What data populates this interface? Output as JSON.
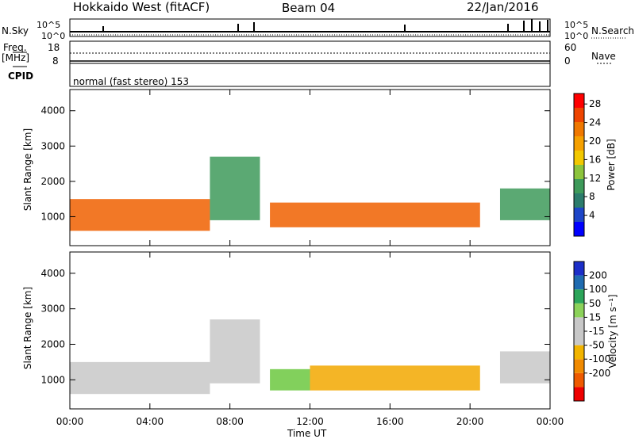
{
  "header": {
    "station": "Hokkaido West (fitACF)",
    "beam": "Beam 04",
    "date": "22/Jan/2016"
  },
  "top_panels": {
    "nsky_label": "N.Sky",
    "nsky_ticks": [
      "10^5",
      "10^0"
    ],
    "nsearch_label": "N.Search",
    "nsearch_ticks": [
      "10^5",
      "10^0"
    ],
    "freq_label": "Freq.",
    "freq_unit": "[MHz]",
    "freq_ticks": [
      "18",
      "8"
    ],
    "nave_label": "Nave",
    "nave_ticks": [
      "60",
      "0"
    ],
    "cpid_label": "CPID",
    "cpid_text": "normal (fast stereo) 153"
  },
  "chart_data": [
    {
      "type": "heatmap",
      "panel": "power",
      "ylabel": "Slant Range [km]",
      "xlabel": "",
      "ylim": [
        180,
        4600
      ],
      "yticks": [
        "1000",
        "2000",
        "3000",
        "4000"
      ],
      "xlim": [
        0,
        24
      ],
      "colorbar_label": "Power [dB]",
      "colorbar_ticks": [
        "4",
        "8",
        "12",
        "16",
        "20",
        "24",
        "28"
      ],
      "colorbar_colors": [
        "#0000ff",
        "#1e46c8",
        "#2c7c6c",
        "#3e9a5a",
        "#8cc43c",
        "#f2c800",
        "#f5a000",
        "#f07800",
        "#ee4400",
        "#ff0000"
      ],
      "echo_regions": [
        {
          "t0": 0.0,
          "t1": 7.0,
          "r0": 600,
          "r1": 1500,
          "level": "high"
        },
        {
          "t0": 7.0,
          "t1": 9.5,
          "r0": 900,
          "r1": 2700,
          "level": "medium"
        },
        {
          "t0": 10.0,
          "t1": 20.5,
          "r0": 700,
          "r1": 1400,
          "level": "high"
        },
        {
          "t0": 21.5,
          "t1": 24.0,
          "r0": 900,
          "r1": 1800,
          "level": "medium"
        }
      ]
    },
    {
      "type": "heatmap",
      "panel": "velocity",
      "ylabel": "Slant Range [km]",
      "xlabel": "Time UT",
      "ylim": [
        180,
        4600
      ],
      "yticks": [
        "1000",
        "2000",
        "3000",
        "4000"
      ],
      "xlim": [
        0,
        24
      ],
      "xticks": [
        "00:00",
        "04:00",
        "08:00",
        "12:00",
        "16:00",
        "20:00",
        "00:00"
      ],
      "colorbar_label": "Velocity [m s⁻¹]",
      "colorbar_ticks": [
        "200",
        "100",
        "50",
        "15",
        "-15",
        "-50",
        "-100",
        "-200"
      ],
      "colorbar_colors": [
        "#1c2ec8",
        "#1f6bb0",
        "#2ca55a",
        "#8cd25a",
        "#c8c8c8",
        "#c8c8c8",
        "#f2b400",
        "#f08a00",
        "#ee5a00",
        "#ee0000"
      ],
      "echo_regions": [
        {
          "t0": 0.0,
          "t1": 7.0,
          "r0": 600,
          "r1": 1500,
          "level": "gray"
        },
        {
          "t0": 7.0,
          "t1": 9.5,
          "r0": 900,
          "r1": 2700,
          "level": "gray"
        },
        {
          "t0": 10.0,
          "t1": 12.0,
          "r0": 700,
          "r1": 1300,
          "level": "green"
        },
        {
          "t0": 12.0,
          "t1": 20.5,
          "r0": 700,
          "r1": 1400,
          "level": "orange"
        },
        {
          "t0": 21.5,
          "t1": 24.0,
          "r0": 900,
          "r1": 1800,
          "level": "gray"
        }
      ]
    }
  ]
}
